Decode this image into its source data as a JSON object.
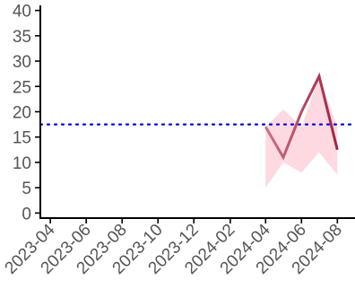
{
  "chart_data": {
    "type": "line",
    "title": "",
    "xlabel": "",
    "ylabel": "",
    "x_ticks": [
      "2023-04",
      "2023-06",
      "2023-08",
      "2023-10",
      "2023-12",
      "2024-02",
      "2024-04",
      "2024-06",
      "2024-08"
    ],
    "y_ticks": [
      0,
      5,
      10,
      15,
      20,
      25,
      30,
      35,
      40
    ],
    "xlim": [
      "2023-03-15",
      "2024-08-31"
    ],
    "ylim": [
      -1,
      41
    ],
    "grid": false,
    "legend": "none",
    "series": [
      {
        "x": [
          "2024-04-01",
          "2024-05-01",
          "2024-06-01",
          "2024-07-01",
          "2024-08-01"
        ],
        "values": [
          17,
          11,
          20,
          27,
          12.5
        ],
        "band_upper": [
          null,
          20.5,
          17,
          27,
          17
        ],
        "band_lower": [
          5,
          10,
          8,
          12,
          7.5
        ],
        "color_start": "#c96e80",
        "color_end": "#9b1b3a",
        "band_color": "#ffd9e1"
      }
    ],
    "reference_line": {
      "y": 17.5,
      "color": "#0000dd",
      "style": "dotted"
    }
  }
}
